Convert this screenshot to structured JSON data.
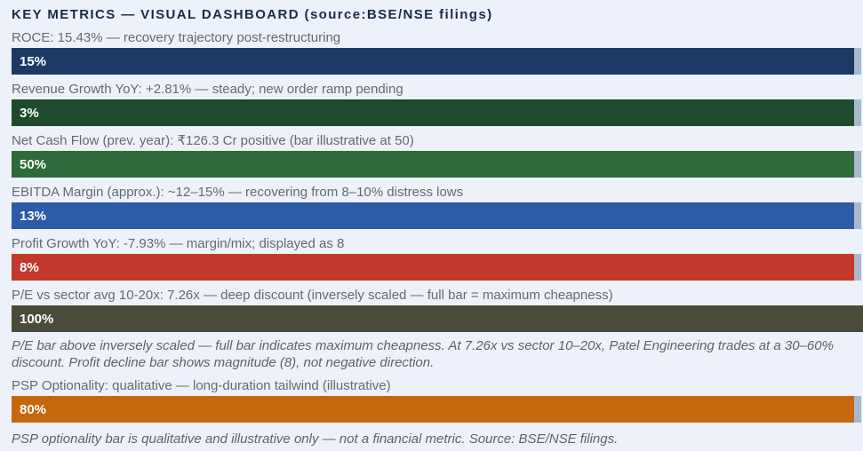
{
  "header": {
    "title": "KEY METRICS — VISUAL DASHBOARD (source:BSE/NSE filings)"
  },
  "metrics": [
    {
      "name": "ROCE",
      "label": "ROCE: 15.43% — recovery trajectory post-restructuring",
      "value_label": "15%",
      "color": "#1d3a66"
    },
    {
      "name": "Revenue Growth YoY",
      "label": "Revenue Growth YoY: +2.81% — steady; new order ramp pending",
      "value_label": "3%",
      "color": "#1d4b2b"
    },
    {
      "name": "Net Cash Flow (prev. year)",
      "label": "Net Cash Flow (prev. year): ₹126.3 Cr positive (bar illustrative at 50)",
      "value_label": "50%",
      "color": "#2d6b3b"
    },
    {
      "name": "EBITDA Margin (approx.)",
      "label": "EBITDA Margin (approx.): ~12–15% — recovering from 8–10% distress lows",
      "value_label": "13%",
      "color": "#2d5ca6"
    },
    {
      "name": "Profit Growth YoY",
      "label": "Profit Growth YoY: -7.93% — margin/mix; displayed as 8",
      "value_label": "8%",
      "color": "#c13a2c"
    },
    {
      "name": "P/E vs sector avg",
      "label": "P/E vs sector avg 10-20x: 7.26x — deep discount (inversely scaled — full bar = maximum cheapness)",
      "value_label": "100%",
      "color": "#4a4b38"
    },
    {
      "name": "PSP Optionality",
      "label": "PSP Optionality: qualitative — long-duration tailwind (illustrative)",
      "value_label": "80%",
      "color": "#c4670f"
    }
  ],
  "notes": {
    "pe_note": "P/E bar above inversely scaled — full bar indicates maximum cheapness. At 7.26x vs sector 10–20x, Patel Engineering trades at a 30–60% discount. Profit decline bar shows magnitude (8), not negative direction.",
    "psp_note": "PSP optionality bar is qualitative and illustrative only — not a financial metric. Source: BSE/NSE filings."
  },
  "colors": {
    "background": "#edf1fa",
    "title_text": "#1b2b47",
    "label_text": "#646a75",
    "note_text": "#5d636d",
    "bar_value_text": "#ffffff",
    "bar_track_remainder": "#a9b9cb"
  },
  "chart_data": {
    "type": "bar",
    "orientation": "horizontal",
    "title": "KEY METRICS — VISUAL DASHBOARD (source:BSE/NSE filings)",
    "categories": [
      "ROCE",
      "Revenue Growth YoY",
      "Net Cash Flow (prev. year)",
      "EBITDA Margin (approx.)",
      "Profit Growth YoY",
      "P/E vs sector avg 10-20x",
      "PSP Optionality"
    ],
    "values": [
      15,
      3,
      50,
      13,
      8,
      100,
      80
    ],
    "bar_labels": [
      "15%",
      "3%",
      "50%",
      "13%",
      "8%",
      "100%",
      "80%"
    ],
    "actual_values": [
      "15.43%",
      "+2.81%",
      "₹126.3 Cr positive",
      "~12–15%",
      "-7.93%",
      "7.26x",
      "qualitative"
    ],
    "series_colors": [
      "#1d3a66",
      "#1d4b2b",
      "#2d6b3b",
      "#2d5ca6",
      "#c13a2c",
      "#4a4b38",
      "#c4670f"
    ],
    "xlim": [
      0,
      100
    ],
    "grid": false,
    "legend": false,
    "annotations": [
      "P/E bar above inversely scaled — full bar indicates maximum cheapness. At 7.26x vs sector 10–20x, Patel Engineering trades at a 30–60% discount. Profit decline bar shows magnitude (8), not negative direction.",
      "PSP optionality bar is qualitative and illustrative only — not a financial metric. Source: BSE/NSE filings."
    ],
    "source": "BSE/NSE filings"
  }
}
